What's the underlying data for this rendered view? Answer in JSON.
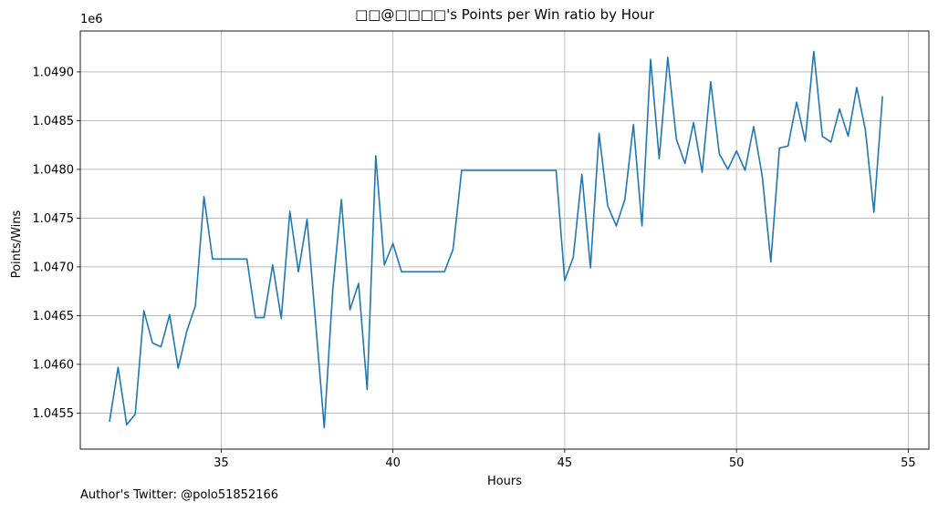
{
  "chart_data": {
    "type": "line",
    "title": "□□@□□□□'s Points per Win ratio by Hour",
    "xlabel": "Hours",
    "ylabel": "Points/Wins",
    "y_multiplier_label": "1e6",
    "xlim": [
      30.9,
      55.6
    ],
    "ylim": [
      1.04513,
      1.04942
    ],
    "x_ticks": [
      35,
      40,
      45,
      50,
      55
    ],
    "x_tick_labels": [
      "35",
      "40",
      "45",
      "50",
      "55"
    ],
    "y_ticks": [
      1.0455,
      1.046,
      1.0465,
      1.047,
      1.0475,
      1.048,
      1.0485,
      1.049
    ],
    "y_tick_labels": [
      "1.0455",
      "1.0460",
      "1.0465",
      "1.0470",
      "1.0475",
      "1.0480",
      "1.0485",
      "1.0490"
    ],
    "grid": true,
    "legend": "none",
    "series": [
      {
        "color": "#1f77b4",
        "x": [
          31.75,
          32.0,
          32.25,
          32.5,
          32.75,
          33.0,
          33.25,
          33.5,
          33.75,
          34.0,
          34.25,
          34.5,
          34.75,
          35.0,
          35.25,
          35.5,
          35.75,
          36.0,
          36.25,
          36.5,
          36.75,
          37.0,
          37.25,
          37.5,
          37.75,
          38.0,
          38.25,
          38.5,
          38.75,
          39.0,
          39.25,
          39.5,
          39.75,
          40.0,
          40.25,
          40.5,
          40.75,
          41.0,
          41.25,
          41.5,
          41.75,
          42.0,
          42.25,
          42.5,
          42.75,
          43.0,
          43.25,
          43.5,
          43.75,
          44.0,
          44.25,
          44.5,
          44.75,
          45.0,
          45.25,
          45.5,
          45.75,
          46.0,
          46.25,
          46.5,
          46.75,
          47.0,
          47.25,
          47.5,
          47.75,
          48.0,
          48.25,
          48.5,
          48.75,
          49.0,
          49.25,
          49.5,
          49.75,
          50.0,
          50.25,
          50.5,
          50.75,
          51.0,
          51.25,
          51.5,
          51.75,
          52.0,
          52.25,
          52.5,
          52.75,
          53.0,
          53.25,
          53.5,
          53.75,
          54.0,
          54.25
        ],
        "y": [
          1.04541,
          1.04597,
          1.04538,
          1.04549,
          1.04655,
          1.04622,
          1.04618,
          1.04651,
          1.04596,
          1.04634,
          1.0466,
          1.04772,
          1.04708,
          1.04708,
          1.04708,
          1.04708,
          1.04708,
          1.04648,
          1.04648,
          1.04702,
          1.04647,
          1.04757,
          1.04695,
          1.04749,
          1.04643,
          1.04535,
          1.04677,
          1.04769,
          1.04656,
          1.04683,
          1.04574,
          1.04814,
          1.04702,
          1.04724,
          1.04695,
          1.04695,
          1.04695,
          1.04695,
          1.04695,
          1.04695,
          1.04718,
          1.04799,
          1.04799,
          1.04799,
          1.04799,
          1.04799,
          1.04799,
          1.04799,
          1.04799,
          1.04799,
          1.04799,
          1.04799,
          1.04799,
          1.04686,
          1.0471,
          1.04795,
          1.04699,
          1.04837,
          1.04763,
          1.04742,
          1.04769,
          1.04846,
          1.04742,
          1.04913,
          1.04811,
          1.04915,
          1.04831,
          1.04806,
          1.04848,
          1.04797,
          1.0489,
          1.04816,
          1.048,
          1.04819,
          1.04799,
          1.04844,
          1.04793,
          1.04705,
          1.04822,
          1.04824,
          1.04869,
          1.04829,
          1.04921,
          1.04834,
          1.04828,
          1.04862,
          1.04834,
          1.04884,
          1.04841,
          1.04756,
          1.04875
        ]
      }
    ]
  },
  "footnote": "Author's Twitter: @polo51852166"
}
